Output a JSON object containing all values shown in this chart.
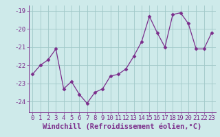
{
  "x": [
    0,
    1,
    2,
    3,
    4,
    5,
    6,
    7,
    8,
    9,
    10,
    11,
    12,
    13,
    14,
    15,
    16,
    17,
    18,
    19,
    20,
    21,
    22,
    23
  ],
  "y": [
    -22.5,
    -22.0,
    -21.7,
    -21.1,
    -23.3,
    -22.9,
    -23.6,
    -24.1,
    -23.5,
    -23.3,
    -22.6,
    -22.5,
    -22.2,
    -21.5,
    -20.7,
    -19.3,
    -20.2,
    -21.0,
    -19.2,
    -19.1,
    -19.7,
    -21.1,
    -21.1,
    -20.2
  ],
  "line_color": "#7b2d8b",
  "marker": "D",
  "marker_size": 2.5,
  "bg_color": "#ceeaea",
  "grid_color": "#a0c8c8",
  "xlabel": "Windchill (Refroidissement éolien,°C)",
  "ylim": [
    -24.6,
    -18.7
  ],
  "yticks": [
    -24,
    -23,
    -22,
    -21,
    -20,
    -19
  ],
  "xticks": [
    0,
    1,
    2,
    3,
    4,
    5,
    6,
    7,
    8,
    9,
    10,
    11,
    12,
    13,
    14,
    15,
    16,
    17,
    18,
    19,
    20,
    21,
    22,
    23
  ],
  "tick_color": "#7b2d8b",
  "tick_fontsize": 6.5,
  "xlabel_fontsize": 7.5
}
